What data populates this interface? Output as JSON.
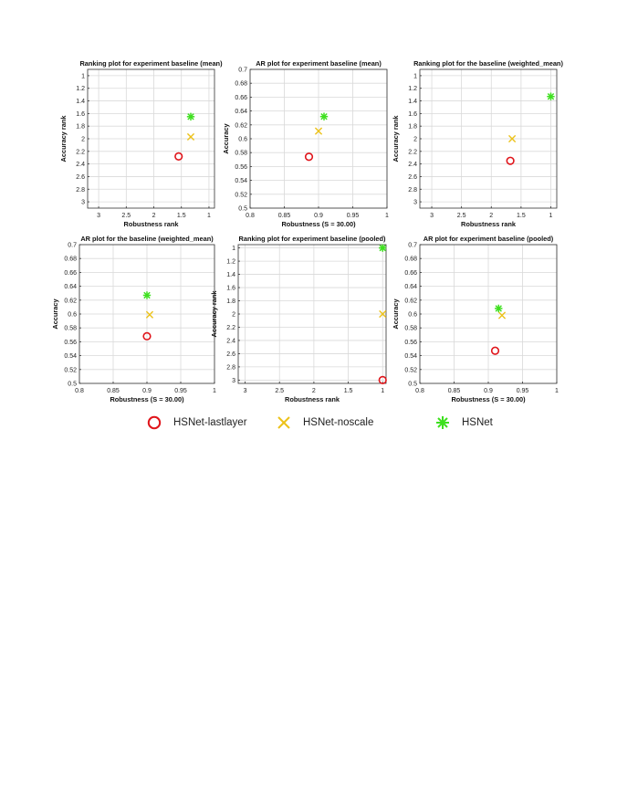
{
  "colors": {
    "HSNet-lastlayer": "#e0151b",
    "HSNet-noscale": "#ecc21a",
    "HSNet": "#3ee01f"
  },
  "legend": {
    "items": [
      {
        "name": "HSNet-lastlayer",
        "marker": "circle"
      },
      {
        "name": "HSNet-noscale",
        "marker": "x"
      },
      {
        "name": "HSNet",
        "marker": "asterisk"
      }
    ]
  },
  "chart_data": [
    {
      "type": "scatter",
      "title": "Ranking plot for experiment baseline (mean)",
      "xlabel": "Robustness rank",
      "ylabel": "Accuracy rank",
      "xlim": [
        3.2,
        0.9
      ],
      "ylim": [
        3.1,
        0.9
      ],
      "xticks": [
        3,
        2.5,
        2,
        1.5,
        1
      ],
      "xticklabels": [
        "3",
        "2.5",
        "2",
        "1.5",
        "1"
      ],
      "yticks": [
        1,
        1.2,
        1.4,
        1.6,
        1.8,
        2,
        2.2,
        2.4,
        2.6,
        2.8,
        3
      ],
      "yticklabels": [
        "1",
        "1.2",
        "1.4",
        "1.6",
        "1.8",
        "2",
        "2.2",
        "2.4",
        "2.6",
        "2.8",
        "3"
      ],
      "grid": true,
      "series": [
        {
          "name": "HSNet-lastlayer",
          "marker": "circle",
          "x": 1.55,
          "y": 2.28
        },
        {
          "name": "HSNet-noscale",
          "marker": "x",
          "x": 1.33,
          "y": 1.97
        },
        {
          "name": "HSNet",
          "marker": "asterisk",
          "x": 1.33,
          "y": 1.65
        }
      ]
    },
    {
      "type": "scatter",
      "title": "AR plot for experiment baseline (mean)",
      "xlabel": "Robustness (S = 30.00)",
      "ylabel": "Accuracy",
      "xlim": [
        0.8,
        1.0
      ],
      "ylim": [
        0.5,
        0.7
      ],
      "xticks": [
        0.8,
        0.85,
        0.9,
        0.95,
        1
      ],
      "xticklabels": [
        "0.8",
        "0.85",
        "0.9",
        "0.95",
        "1"
      ],
      "yticks": [
        0.5,
        0.52,
        0.54,
        0.56,
        0.58,
        0.6,
        0.62,
        0.64,
        0.66,
        0.68,
        0.7
      ],
      "yticklabels": [
        "0.5",
        "0.52",
        "0.54",
        "0.56",
        "0.58",
        "0.6",
        "0.62",
        "0.64",
        "0.66",
        "0.68",
        "0.7"
      ],
      "grid": true,
      "series": [
        {
          "name": "HSNet-lastlayer",
          "marker": "circle",
          "x": 0.886,
          "y": 0.574
        },
        {
          "name": "HSNet-noscale",
          "marker": "x",
          "x": 0.9,
          "y": 0.611
        },
        {
          "name": "HSNet",
          "marker": "asterisk",
          "x": 0.908,
          "y": 0.632
        }
      ]
    },
    {
      "type": "scatter",
      "title": "Ranking plot for the baseline (weighted_mean)",
      "xlabel": "Robustness rank",
      "ylabel": "Accuracy rank",
      "xlim": [
        3.2,
        0.9
      ],
      "ylim": [
        3.1,
        0.9
      ],
      "xticks": [
        3,
        2.5,
        2,
        1.5,
        1
      ],
      "xticklabels": [
        "3",
        "2.5",
        "2",
        "1.5",
        "1"
      ],
      "yticks": [
        1,
        1.2,
        1.4,
        1.6,
        1.8,
        2,
        2.2,
        2.4,
        2.6,
        2.8,
        3
      ],
      "yticklabels": [
        "1",
        "1.2",
        "1.4",
        "1.6",
        "1.8",
        "2",
        "2.2",
        "2.4",
        "2.6",
        "2.8",
        "3"
      ],
      "grid": true,
      "series": [
        {
          "name": "HSNet-lastlayer",
          "marker": "circle",
          "x": 1.68,
          "y": 2.35
        },
        {
          "name": "HSNet-noscale",
          "marker": "x",
          "x": 1.65,
          "y": 2.0
        },
        {
          "name": "HSNet",
          "marker": "asterisk",
          "x": 1.0,
          "y": 1.33
        }
      ]
    },
    {
      "type": "scatter",
      "title": "AR plot for the baseline (weighted_mean)",
      "xlabel": "Robustness (S = 30.00)",
      "ylabel": "Accuracy",
      "xlim": [
        0.8,
        1.0
      ],
      "ylim": [
        0.5,
        0.7
      ],
      "xticks": [
        0.8,
        0.85,
        0.9,
        0.95,
        1
      ],
      "xticklabels": [
        "0.8",
        "0.85",
        "0.9",
        "0.95",
        "1"
      ],
      "yticks": [
        0.5,
        0.52,
        0.54,
        0.56,
        0.58,
        0.6,
        0.62,
        0.64,
        0.66,
        0.68,
        0.7
      ],
      "yticklabels": [
        "0.5",
        "0.52",
        "0.54",
        "0.56",
        "0.58",
        "0.6",
        "0.62",
        "0.64",
        "0.66",
        "0.68",
        "0.7"
      ],
      "grid": true,
      "series": [
        {
          "name": "HSNet-lastlayer",
          "marker": "circle",
          "x": 0.9,
          "y": 0.568
        },
        {
          "name": "HSNet-noscale",
          "marker": "x",
          "x": 0.904,
          "y": 0.599
        },
        {
          "name": "HSNet",
          "marker": "asterisk",
          "x": 0.9,
          "y": 0.627
        }
      ]
    },
    {
      "type": "scatter",
      "title": "Ranking plot for experiment baseline (pooled)",
      "xlabel": "Robustness rank",
      "ylabel": "Accuracy rank",
      "xlim": [
        3.1,
        0.95
      ],
      "ylim": [
        3.05,
        0.95
      ],
      "xticks": [
        3,
        2.5,
        2,
        1.5,
        1
      ],
      "xticklabels": [
        "3",
        "2.5",
        "2",
        "1.5",
        "1"
      ],
      "yticks": [
        1,
        1.2,
        1.4,
        1.6,
        1.8,
        2,
        2.2,
        2.4,
        2.6,
        2.8,
        3
      ],
      "yticklabels": [
        "1",
        "1.2",
        "1.4",
        "1.6",
        "1.8",
        "2",
        "2.2",
        "2.4",
        "2.6",
        "2.8",
        "3"
      ],
      "grid": true,
      "series": [
        {
          "name": "HSNet-lastlayer",
          "marker": "circle",
          "x": 1.0,
          "y": 3.0
        },
        {
          "name": "HSNet-noscale",
          "marker": "x",
          "x": 1.0,
          "y": 2.0
        },
        {
          "name": "HSNet",
          "marker": "asterisk",
          "x": 1.0,
          "y": 1.0
        }
      ]
    },
    {
      "type": "scatter",
      "title": "AR plot for experiment baseline (pooled)",
      "xlabel": "Robustness (S = 30.00)",
      "ylabel": "Accuracy",
      "xlim": [
        0.8,
        1.0
      ],
      "ylim": [
        0.5,
        0.7
      ],
      "xticks": [
        0.8,
        0.85,
        0.9,
        0.95,
        1
      ],
      "xticklabels": [
        "0.8",
        "0.85",
        "0.9",
        "0.95",
        "1"
      ],
      "yticks": [
        0.5,
        0.52,
        0.54,
        0.56,
        0.58,
        0.6,
        0.62,
        0.64,
        0.66,
        0.68,
        0.7
      ],
      "yticklabels": [
        "0.5",
        "0.52",
        "0.54",
        "0.56",
        "0.58",
        "0.6",
        "0.62",
        "0.64",
        "0.66",
        "0.68",
        "0.7"
      ],
      "grid": true,
      "series": [
        {
          "name": "HSNet-lastlayer",
          "marker": "circle",
          "x": 0.91,
          "y": 0.547
        },
        {
          "name": "HSNet-noscale",
          "marker": "x",
          "x": 0.92,
          "y": 0.598
        },
        {
          "name": "HSNet",
          "marker": "asterisk",
          "x": 0.915,
          "y": 0.608
        }
      ]
    }
  ]
}
